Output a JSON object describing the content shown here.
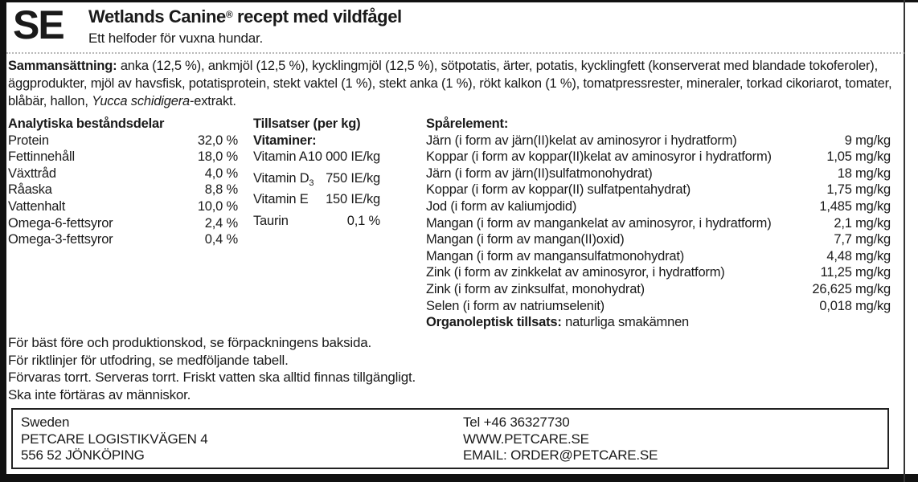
{
  "header": {
    "lang_code": "SE",
    "title_brand": "Wetlands Canine",
    "title_reg": "®",
    "title_rest": " recept med vildfågel",
    "subtitle": "Ett helfoder för vuxna hundar."
  },
  "composition": {
    "label": "Sammansättning:",
    "text_before_italic": " anka (12,5 %), ankmjöl (12,5 %), kycklingmjöl (12,5 %), sötpotatis, ärter, potatis, kycklingfett (konserverat med blandade tokoferoler), äggprodukter, mjöl av havsfisk, potatisprotein, stekt vaktel (1 %), stekt anka (1 %), rökt kalkon (1 %), tomatpressrester, mineraler, torkad cikoriarot, tomater, blåbär, hallon, ",
    "italic_text": "Yucca schidigera",
    "text_after_italic": "-extrakt."
  },
  "analytical": {
    "header": "Analytiska beståndsdelar",
    "rows": [
      {
        "name": "Protein",
        "value": "32,0 %"
      },
      {
        "name": "Fettinnehåll",
        "value": "18,0 %"
      },
      {
        "name": "Växttråd",
        "value": "4,0 %"
      },
      {
        "name": "Råaska",
        "value": "8,8 %"
      },
      {
        "name": "Vattenhalt",
        "value": "10,0 %"
      },
      {
        "name": "Omega-6-fettsyror",
        "value": "2,4 %"
      },
      {
        "name": "Omega-3-fettsyror",
        "value": "0,4 %"
      }
    ]
  },
  "additives": {
    "header": "Tillsatser (per kg)",
    "subheader": "Vitaminer:",
    "rows": [
      {
        "name": "Vitamin A",
        "sub": "",
        "value": "10 000 IE/kg"
      },
      {
        "name": "Vitamin D",
        "sub": "3",
        "value": "750 IE/kg"
      },
      {
        "name": "Vitamin E",
        "sub": "",
        "value": "150 IE/kg"
      },
      {
        "name": "Taurin",
        "sub": "",
        "value": "0,1 %"
      }
    ]
  },
  "trace_elements": {
    "header": "Spårelement:",
    "rows": [
      {
        "name": "Järn (i form av järn(II)kelat av aminosyror i hydratform)",
        "value": "9 mg/kg"
      },
      {
        "name": "Koppar (i form av koppar(II)kelat av aminosyror i hydratform)",
        "value": "1,05 mg/kg"
      },
      {
        "name": "Järn (i form av järn(II)sulfatmonohydrat)",
        "value": "18 mg/kg"
      },
      {
        "name": "Koppar (i form av koppar(II) sulfatpentahydrat)",
        "value": "1,75 mg/kg"
      },
      {
        "name": "Jod (i form av kaliumjodid)",
        "value": "1,485 mg/kg"
      },
      {
        "name": "Mangan (i form av mangankelat av aminosyror, i hydratform)",
        "value": "2,1 mg/kg"
      },
      {
        "name": "Mangan (i form av mangan(II)oxid)",
        "value": "7,7 mg/kg"
      },
      {
        "name": "Mangan (i form av mangansulfatmonohydrat)",
        "value": "4,48 mg/kg"
      },
      {
        "name": "Zink (i form av zinkkelat av aminosyror, i hydratform)",
        "value": "11,25 mg/kg"
      },
      {
        "name": "Zink (i form av zinksulfat, monohydrat)",
        "value": "26,625 mg/kg"
      },
      {
        "name": "Selen (i form av natriumselenit)",
        "value": "0,018 mg/kg"
      }
    ],
    "organoleptic_label": "Organoleptisk tillsats:",
    "organoleptic_value": " naturliga smakämnen"
  },
  "notes": {
    "lines": [
      "För bäst före och produktionskod, se förpackningens baksida.",
      "För riktlinjer för utfodring, se medföljande tabell.",
      "Förvaras torrt. Serveras torrt. Friskt vatten ska alltid finnas tillgängligt.",
      "Ska inte förtäras av människor."
    ]
  },
  "footer": {
    "left_lines": [
      "Sweden",
      "PETCARE LOGISTIKVÄGEN 4",
      "556 52 JÖNKÖPING"
    ],
    "right_lines": [
      "Tel +46 36327730",
      "WWW.PETCARE.SE",
      "EMAIL: ORDER@PETCARE.SE"
    ]
  },
  "colors": {
    "text": "#1a1a1a",
    "frame": "#111111",
    "separator": "#b9b9b9"
  }
}
